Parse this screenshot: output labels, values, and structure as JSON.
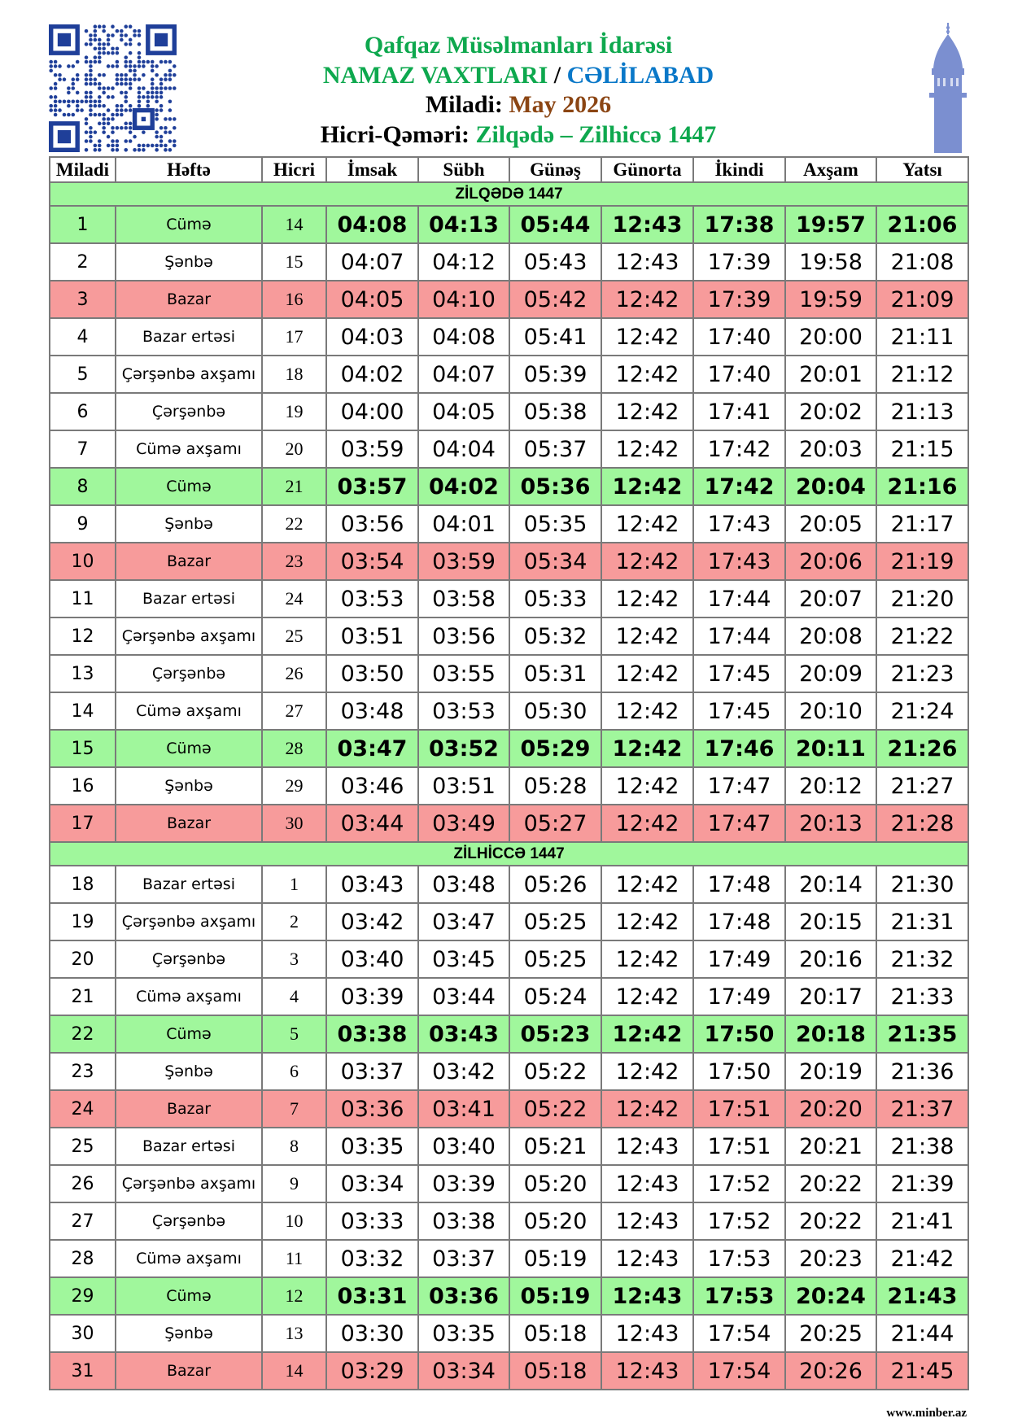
{
  "header": {
    "org": "Qafqaz Müsəlmanları İdarəsi",
    "title_prefix": "NAMAZ VAXTLARI",
    "separator": "/",
    "city": "CƏLİLABAD",
    "miladi_label": "Miladi:",
    "miladi_value": "May 2026",
    "hicri_label": "Hicri-Qəməri:",
    "hicri_value": "Zilqədə – Zilhiccə 1447"
  },
  "colors": {
    "friday": "#a0f79c",
    "sunday": "#f79b9b",
    "title_green": "#0ea84e",
    "city_blue": "#0a78c8",
    "month_brown": "#8b4513",
    "minaret": "#7b8fd0",
    "qr": "#1f3f99"
  },
  "icons": {
    "qr": "qr-code-icon",
    "minaret": "minaret-icon"
  },
  "columns": [
    "Miladi",
    "Həftə",
    "Hicri",
    "İmsak",
    "Sübh",
    "Günəş",
    "Günorta",
    "İkindi",
    "Axşam",
    "Yatsı"
  ],
  "sections": [
    {
      "title": "ZİLQƏDƏ 1447",
      "rows": [
        [
          "1",
          "Cümə",
          "14",
          "04:08",
          "04:13",
          "05:44",
          "12:43",
          "17:38",
          "19:57",
          "21:06"
        ],
        [
          "2",
          "Şənbə",
          "15",
          "04:07",
          "04:12",
          "05:43",
          "12:43",
          "17:39",
          "19:58",
          "21:08"
        ],
        [
          "3",
          "Bazar",
          "16",
          "04:05",
          "04:10",
          "05:42",
          "12:42",
          "17:39",
          "19:59",
          "21:09"
        ],
        [
          "4",
          "Bazar ertəsi",
          "17",
          "04:03",
          "04:08",
          "05:41",
          "12:42",
          "17:40",
          "20:00",
          "21:11"
        ],
        [
          "5",
          "Çərşənbə axşamı",
          "18",
          "04:02",
          "04:07",
          "05:39",
          "12:42",
          "17:40",
          "20:01",
          "21:12"
        ],
        [
          "6",
          "Çərşənbə",
          "19",
          "04:00",
          "04:05",
          "05:38",
          "12:42",
          "17:41",
          "20:02",
          "21:13"
        ],
        [
          "7",
          "Cümə axşamı",
          "20",
          "03:59",
          "04:04",
          "05:37",
          "12:42",
          "17:42",
          "20:03",
          "21:15"
        ],
        [
          "8",
          "Cümə",
          "21",
          "03:57",
          "04:02",
          "05:36",
          "12:42",
          "17:42",
          "20:04",
          "21:16"
        ],
        [
          "9",
          "Şənbə",
          "22",
          "03:56",
          "04:01",
          "05:35",
          "12:42",
          "17:43",
          "20:05",
          "21:17"
        ],
        [
          "10",
          "Bazar",
          "23",
          "03:54",
          "03:59",
          "05:34",
          "12:42",
          "17:43",
          "20:06",
          "21:19"
        ],
        [
          "11",
          "Bazar ertəsi",
          "24",
          "03:53",
          "03:58",
          "05:33",
          "12:42",
          "17:44",
          "20:07",
          "21:20"
        ],
        [
          "12",
          "Çərşənbə axşamı",
          "25",
          "03:51",
          "03:56",
          "05:32",
          "12:42",
          "17:44",
          "20:08",
          "21:22"
        ],
        [
          "13",
          "Çərşənbə",
          "26",
          "03:50",
          "03:55",
          "05:31",
          "12:42",
          "17:45",
          "20:09",
          "21:23"
        ],
        [
          "14",
          "Cümə axşamı",
          "27",
          "03:48",
          "03:53",
          "05:30",
          "12:42",
          "17:45",
          "20:10",
          "21:24"
        ],
        [
          "15",
          "Cümə",
          "28",
          "03:47",
          "03:52",
          "05:29",
          "12:42",
          "17:46",
          "20:11",
          "21:26"
        ],
        [
          "16",
          "Şənbə",
          "29",
          "03:46",
          "03:51",
          "05:28",
          "12:42",
          "17:47",
          "20:12",
          "21:27"
        ],
        [
          "17",
          "Bazar",
          "30",
          "03:44",
          "03:49",
          "05:27",
          "12:42",
          "17:47",
          "20:13",
          "21:28"
        ]
      ]
    },
    {
      "title": "ZİLHİCCƏ 1447",
      "rows": [
        [
          "18",
          "Bazar ertəsi",
          "1",
          "03:43",
          "03:48",
          "05:26",
          "12:42",
          "17:48",
          "20:14",
          "21:30"
        ],
        [
          "19",
          "Çərşənbə axşamı",
          "2",
          "03:42",
          "03:47",
          "05:25",
          "12:42",
          "17:48",
          "20:15",
          "21:31"
        ],
        [
          "20",
          "Çərşənbə",
          "3",
          "03:40",
          "03:45",
          "05:25",
          "12:42",
          "17:49",
          "20:16",
          "21:32"
        ],
        [
          "21",
          "Cümə axşamı",
          "4",
          "03:39",
          "03:44",
          "05:24",
          "12:42",
          "17:49",
          "20:17",
          "21:33"
        ],
        [
          "22",
          "Cümə",
          "5",
          "03:38",
          "03:43",
          "05:23",
          "12:42",
          "17:50",
          "20:18",
          "21:35"
        ],
        [
          "23",
          "Şənbə",
          "6",
          "03:37",
          "03:42",
          "05:22",
          "12:42",
          "17:50",
          "20:19",
          "21:36"
        ],
        [
          "24",
          "Bazar",
          "7",
          "03:36",
          "03:41",
          "05:22",
          "12:42",
          "17:51",
          "20:20",
          "21:37"
        ],
        [
          "25",
          "Bazar ertəsi",
          "8",
          "03:35",
          "03:40",
          "05:21",
          "12:43",
          "17:51",
          "20:21",
          "21:38"
        ],
        [
          "26",
          "Çərşənbə axşamı",
          "9",
          "03:34",
          "03:39",
          "05:20",
          "12:43",
          "17:52",
          "20:22",
          "21:39"
        ],
        [
          "27",
          "Çərşənbə",
          "10",
          "03:33",
          "03:38",
          "05:20",
          "12:43",
          "17:52",
          "20:22",
          "21:41"
        ],
        [
          "28",
          "Cümə axşamı",
          "11",
          "03:32",
          "03:37",
          "05:19",
          "12:43",
          "17:53",
          "20:23",
          "21:42"
        ],
        [
          "29",
          "Cümə",
          "12",
          "03:31",
          "03:36",
          "05:19",
          "12:43",
          "17:53",
          "20:24",
          "21:43"
        ],
        [
          "30",
          "Şənbə",
          "13",
          "03:30",
          "03:35",
          "05:18",
          "12:43",
          "17:54",
          "20:25",
          "21:44"
        ],
        [
          "31",
          "Bazar",
          "14",
          "03:29",
          "03:34",
          "05:18",
          "12:43",
          "17:54",
          "20:26",
          "21:45"
        ]
      ]
    }
  ],
  "footer": {
    "website": "www.minber.az"
  }
}
